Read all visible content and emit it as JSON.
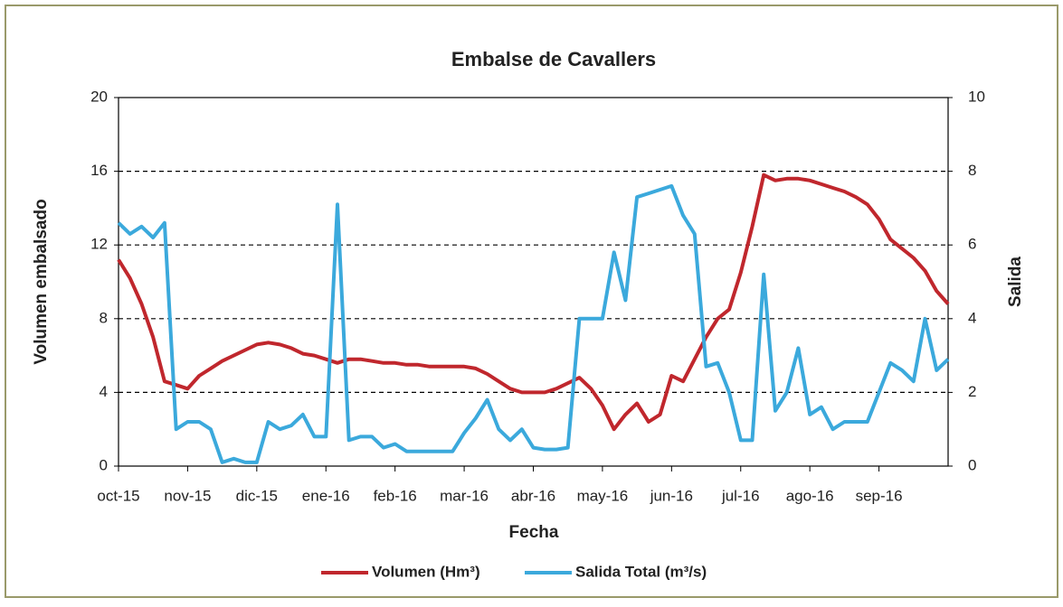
{
  "chart_data": {
    "type": "line",
    "title": "Embalse de Cavallers",
    "xlabel": "Fecha",
    "ylabel": "Volumen embalsado",
    "y2label": "Salida",
    "categories": [
      "oct-15",
      null,
      null,
      null,
      null,
      null,
      "nov-15",
      null,
      null,
      null,
      null,
      null,
      "dic-15",
      null,
      null,
      null,
      null,
      null,
      "ene-16",
      null,
      null,
      null,
      null,
      null,
      "feb-16",
      null,
      null,
      null,
      null,
      null,
      "mar-16",
      null,
      null,
      null,
      null,
      null,
      "abr-16",
      null,
      null,
      null,
      null,
      null,
      "may-16",
      null,
      null,
      null,
      null,
      null,
      "jun-16",
      null,
      null,
      null,
      null,
      null,
      "jul-16",
      null,
      null,
      null,
      null,
      null,
      "ago-16",
      null,
      null,
      null,
      null,
      null,
      "sep-16",
      null,
      null,
      null,
      null,
      null,
      null
    ],
    "series": [
      {
        "name": "Volumen (Hm³)",
        "color": "#c0272d",
        "axis": "y",
        "values": [
          11.2,
          10.2,
          8.8,
          7.0,
          4.6,
          4.4,
          4.2,
          4.9,
          5.3,
          5.7,
          6.0,
          6.3,
          6.6,
          6.7,
          6.6,
          6.4,
          6.1,
          6.0,
          5.8,
          5.6,
          5.8,
          5.8,
          5.7,
          5.6,
          5.6,
          5.5,
          5.5,
          5.4,
          5.4,
          5.4,
          5.4,
          5.3,
          5.0,
          4.6,
          4.2,
          4.0,
          4.0,
          4.0,
          4.2,
          4.5,
          4.8,
          4.2,
          3.3,
          2.0,
          2.8,
          3.4,
          2.4,
          2.8,
          4.9,
          4.6,
          5.8,
          7.0,
          8.0,
          8.5,
          10.5,
          13.0,
          15.8,
          15.5,
          15.6,
          15.6,
          15.5,
          15.3,
          15.1,
          14.9,
          14.6,
          14.2,
          13.4,
          12.3,
          11.8,
          11.3,
          10.6,
          9.5,
          8.8
        ]
      },
      {
        "name": "Salida Total (m³/s)",
        "color": "#3ba9dc",
        "axis": "y2",
        "values": [
          6.6,
          6.3,
          6.5,
          6.2,
          6.6,
          1.0,
          1.2,
          1.2,
          1.0,
          0.1,
          0.2,
          0.1,
          0.1,
          1.2,
          1.0,
          1.1,
          1.4,
          0.8,
          0.8,
          7.1,
          0.7,
          0.8,
          0.8,
          0.5,
          0.6,
          0.4,
          0.4,
          0.4,
          0.4,
          0.4,
          0.9,
          1.3,
          1.8,
          1.0,
          0.7,
          1.0,
          0.5,
          0.45,
          0.45,
          0.5,
          4.0,
          4.0,
          4.0,
          5.8,
          4.5,
          7.3,
          7.4,
          7.5,
          7.6,
          6.8,
          6.3,
          2.7,
          2.8,
          2.0,
          0.7,
          0.7,
          5.2,
          1.5,
          2.0,
          3.2,
          1.4,
          1.6,
          1.0,
          1.2,
          1.2,
          1.2,
          2.0,
          2.8,
          2.6,
          2.3,
          4.0,
          2.6,
          2.9
        ]
      }
    ],
    "ylim": [
      0,
      20
    ],
    "yticks": [
      0,
      4,
      8,
      12,
      16,
      20
    ],
    "y2lim": [
      0,
      10
    ],
    "y2ticks": [
      0,
      2,
      4,
      6,
      8,
      10
    ],
    "grid": true,
    "legend": "bottom"
  }
}
